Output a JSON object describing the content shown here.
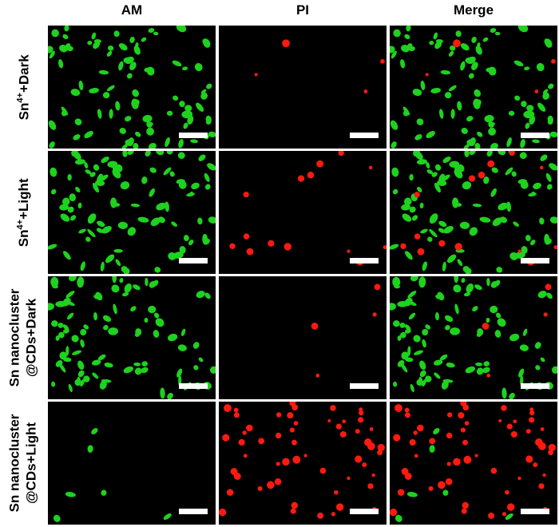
{
  "column_headers": [
    "AM",
    "PI",
    "Merge"
  ],
  "row_labels": [
    {
      "line1": "Sn",
      "sup": "4+",
      "line1_rest": "+Dark",
      "line2": ""
    },
    {
      "line1": "Sn",
      "sup": "4+",
      "line1_rest": "+Light",
      "line2": ""
    },
    {
      "line1": "Sn nanocluster",
      "sup": "",
      "line1_rest": "",
      "line2": "@CDs+Dark"
    },
    {
      "line1": "Sn nanocluster",
      "sup": "",
      "line1_rest": "",
      "line2": "@CDs+Light"
    }
  ],
  "channels": {
    "AM": {
      "stain": "live cells",
      "color": "#1ed21e"
    },
    "PI": {
      "stain": "dead cells",
      "color": "#ff1a10"
    }
  },
  "panel_background": "#000000",
  "scale_bar_color": "#ffffff",
  "conditions": [
    {
      "live_density": "high",
      "dead_density": "very low"
    },
    {
      "live_density": "high",
      "dead_density": "low"
    },
    {
      "live_density": "high",
      "dead_density": "very low"
    },
    {
      "live_density": "very low",
      "dead_density": "high"
    }
  ]
}
